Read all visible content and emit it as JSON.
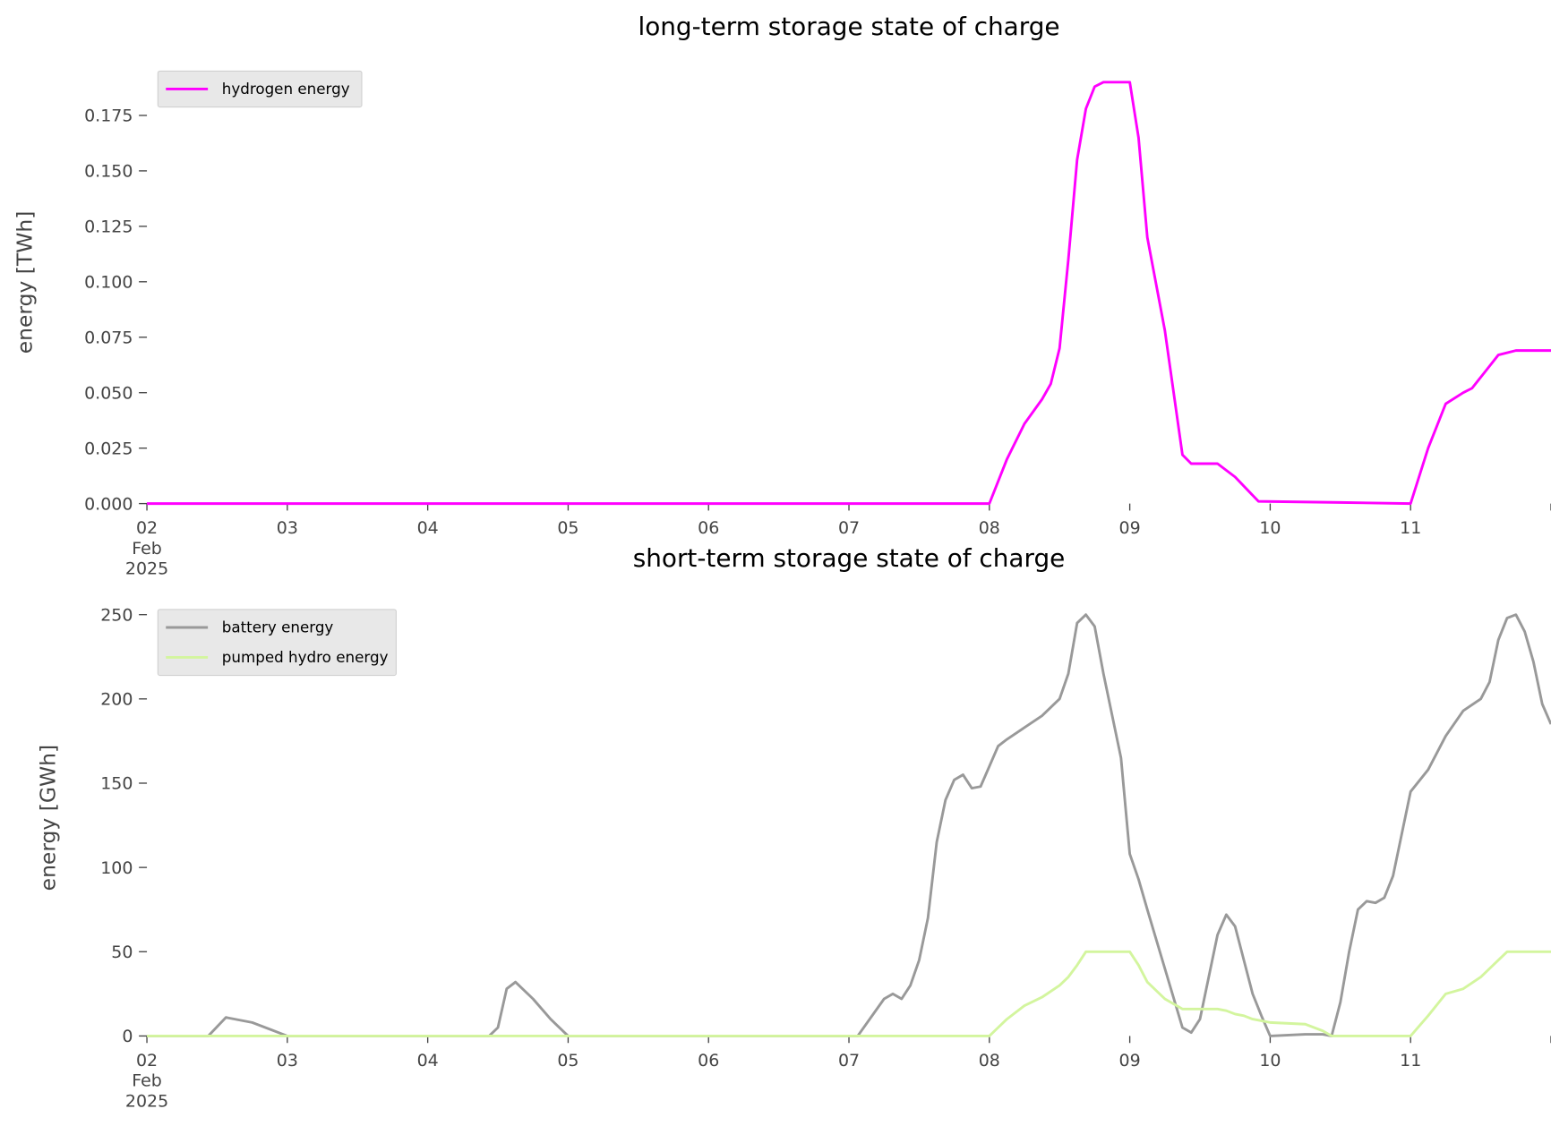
{
  "chart_data": [
    {
      "type": "line",
      "title": "long-term storage state of charge",
      "ylabel": "energy [TWh]",
      "xlim": [
        "2025-02-02 00:00",
        "2025-02-12 00:00"
      ],
      "xticks": [
        {
          "value": "2025-02-02 00:00",
          "label": "02\nFeb\n2025"
        },
        {
          "value": "2025-02-03 00:00",
          "label": "03"
        },
        {
          "value": "2025-02-04 00:00",
          "label": "04"
        },
        {
          "value": "2025-02-05 00:00",
          "label": "05"
        },
        {
          "value": "2025-02-06 00:00",
          "label": "06"
        },
        {
          "value": "2025-02-07 00:00",
          "label": "07"
        },
        {
          "value": "2025-02-08 00:00",
          "label": "08"
        },
        {
          "value": "2025-02-09 00:00",
          "label": "09"
        },
        {
          "value": "2025-02-10 00:00",
          "label": "10"
        },
        {
          "value": "2025-02-11 00:00",
          "label": "11"
        },
        {
          "value": "2025-02-12 00:00",
          "label": null
        }
      ],
      "ylim": [
        0,
        0.1995
      ],
      "yticks": [
        {
          "value": 0,
          "label": "0.000"
        },
        {
          "value": 0.025,
          "label": "0.025"
        },
        {
          "value": 0.05,
          "label": "0.050"
        },
        {
          "value": 0.075,
          "label": "0.075"
        },
        {
          "value": 0.1,
          "label": "0.100"
        },
        {
          "value": 0.125,
          "label": "0.125"
        },
        {
          "value": 0.15,
          "label": "0.150"
        },
        {
          "value": 0.175,
          "label": "0.175"
        }
      ],
      "legend": "upper left",
      "x": [
        "2025-02-02 00:00",
        "2025-02-08 00:00",
        "2025-02-08 03:00",
        "2025-02-08 06:00",
        "2025-02-08 09:00",
        "2025-02-08 10:30",
        "2025-02-08 12:00",
        "2025-02-08 13:30",
        "2025-02-08 15:00",
        "2025-02-08 16:30",
        "2025-02-08 18:00",
        "2025-02-08 19:30",
        "2025-02-09 00:00",
        "2025-02-09 01:30",
        "2025-02-09 03:00",
        "2025-02-09 06:00",
        "2025-02-09 07:30",
        "2025-02-09 09:00",
        "2025-02-09 10:30",
        "2025-02-09 15:00",
        "2025-02-09 18:00",
        "2025-02-09 22:00",
        "2025-02-10 12:00",
        "2025-02-11 00:00",
        "2025-02-11 03:00",
        "2025-02-11 06:00",
        "2025-02-11 09:00",
        "2025-02-11 10:30",
        "2025-02-11 13:30",
        "2025-02-11 15:00",
        "2025-02-11 18:00",
        "2025-02-12 00:00"
      ],
      "series": [
        {
          "name": "hydrogen energy",
          "color": "#ff00ff",
          "values": [
            0,
            0,
            0.02,
            0.036,
            0.047,
            0.054,
            0.07,
            0.11,
            0.155,
            0.178,
            0.188,
            0.19,
            0.19,
            0.165,
            0.12,
            0.078,
            0.05,
            0.022,
            0.018,
            0.018,
            0.012,
            0.001,
            0.0005,
            0,
            0.025,
            0.045,
            0.05,
            0.052,
            0.062,
            0.067,
            0.069,
            0.069
          ]
        }
      ]
    },
    {
      "type": "line",
      "title": "short-term storage state of charge",
      "ylabel": "energy [GWh]",
      "xlim": [
        "2025-02-02 00:00",
        "2025-02-12 00:00"
      ],
      "xticks": [
        {
          "value": "2025-02-02 00:00",
          "label": "02\nFeb\n2025"
        },
        {
          "value": "2025-02-03 00:00",
          "label": "03"
        },
        {
          "value": "2025-02-04 00:00",
          "label": "04"
        },
        {
          "value": "2025-02-05 00:00",
          "label": "05"
        },
        {
          "value": "2025-02-06 00:00",
          "label": "06"
        },
        {
          "value": "2025-02-07 00:00",
          "label": "07"
        },
        {
          "value": "2025-02-08 00:00",
          "label": "08"
        },
        {
          "value": "2025-02-09 00:00",
          "label": "09"
        },
        {
          "value": "2025-02-10 00:00",
          "label": "10"
        },
        {
          "value": "2025-02-11 00:00",
          "label": "11"
        },
        {
          "value": "2025-02-12 00:00",
          "label": null
        }
      ],
      "ylim": [
        0,
        259
      ],
      "yticks": [
        0,
        50,
        100,
        150,
        200,
        250
      ],
      "legend": "upper left",
      "x": [
        "2025-02-02 00:00",
        "2025-02-02 10:30",
        "2025-02-02 13:30",
        "2025-02-02 18:00",
        "2025-02-02 21:00",
        "2025-02-03 00:00",
        "2025-02-04 10:30",
        "2025-02-04 12:00",
        "2025-02-04 13:30",
        "2025-02-04 15:00",
        "2025-02-04 18:00",
        "2025-02-04 21:00",
        "2025-02-05 00:00",
        "2025-02-07 01:30",
        "2025-02-07 06:00",
        "2025-02-07 07:30",
        "2025-02-07 09:00",
        "2025-02-07 10:30",
        "2025-02-07 12:00",
        "2025-02-07 13:30",
        "2025-02-07 15:00",
        "2025-02-07 16:30",
        "2025-02-07 18:00",
        "2025-02-07 19:30",
        "2025-02-07 21:00",
        "2025-02-07 22:30",
        "2025-02-08 00:00",
        "2025-02-08 01:30",
        "2025-02-08 03:00",
        "2025-02-08 06:00",
        "2025-02-08 09:00",
        "2025-02-08 12:00",
        "2025-02-08 13:30",
        "2025-02-08 15:00",
        "2025-02-08 16:30",
        "2025-02-08 18:00",
        "2025-02-08 19:30",
        "2025-02-08 22:30",
        "2025-02-09 00:00",
        "2025-02-09 01:30",
        "2025-02-09 03:00",
        "2025-02-09 06:00",
        "2025-02-09 09:00",
        "2025-02-09 10:30",
        "2025-02-09 12:00",
        "2025-02-09 13:30",
        "2025-02-09 15:00",
        "2025-02-09 16:30",
        "2025-02-09 18:00",
        "2025-02-09 19:30",
        "2025-02-09 21:00",
        "2025-02-09 22:30",
        "2025-02-10 00:00",
        "2025-02-10 06:00",
        "2025-02-10 09:00",
        "2025-02-10 10:30",
        "2025-02-10 12:00",
        "2025-02-10 13:30",
        "2025-02-10 15:00",
        "2025-02-10 16:30",
        "2025-02-10 18:00",
        "2025-02-10 19:30",
        "2025-02-10 21:00",
        "2025-02-10 22:30",
        "2025-02-11 00:00",
        "2025-02-11 03:00",
        "2025-02-11 06:00",
        "2025-02-11 09:00",
        "2025-02-11 12:00",
        "2025-02-11 13:30",
        "2025-02-11 15:00",
        "2025-02-11 16:30",
        "2025-02-11 18:00",
        "2025-02-11 19:30",
        "2025-02-11 21:00",
        "2025-02-11 22:30",
        "2025-02-12 00:00"
      ],
      "series": [
        {
          "name": "battery energy",
          "color": "#999999",
          "values": [
            0,
            0,
            11,
            8,
            4,
            0,
            0,
            5,
            28,
            32,
            22,
            10,
            0,
            0,
            22,
            25,
            22,
            30,
            45,
            70,
            115,
            140,
            152,
            155,
            147,
            148,
            160,
            172,
            176,
            183,
            190,
            200,
            215,
            245,
            250,
            243,
            215,
            165,
            108,
            93,
            75,
            40,
            5,
            2,
            10,
            35,
            60,
            72,
            65,
            45,
            25,
            12,
            0,
            1,
            1,
            0,
            20,
            50,
            75,
            80,
            79,
            82,
            95,
            120,
            145,
            158,
            178,
            193,
            200,
            210,
            235,
            248,
            250,
            240,
            222,
            197,
            185
          ]
        },
        {
          "name": "pumped hydro energy",
          "color": "#d3f59e",
          "values": [
            0,
            0,
            0,
            0,
            0,
            0,
            0,
            0,
            0,
            0,
            0,
            0,
            0,
            0,
            0,
            0,
            0,
            0,
            0,
            0,
            0,
            0,
            0,
            0,
            0,
            0,
            0,
            5,
            10,
            18,
            23,
            30,
            35,
            42,
            50,
            50,
            50,
            50,
            50,
            42,
            32,
            22,
            16,
            16,
            16,
            16,
            16,
            15,
            13,
            12,
            10,
            9,
            8,
            7,
            3,
            0,
            0,
            0,
            0,
            0,
            0,
            0,
            0,
            0,
            0,
            12,
            25,
            28,
            35,
            40,
            45,
            50,
            50,
            50,
            50,
            50,
            50
          ]
        }
      ]
    }
  ]
}
